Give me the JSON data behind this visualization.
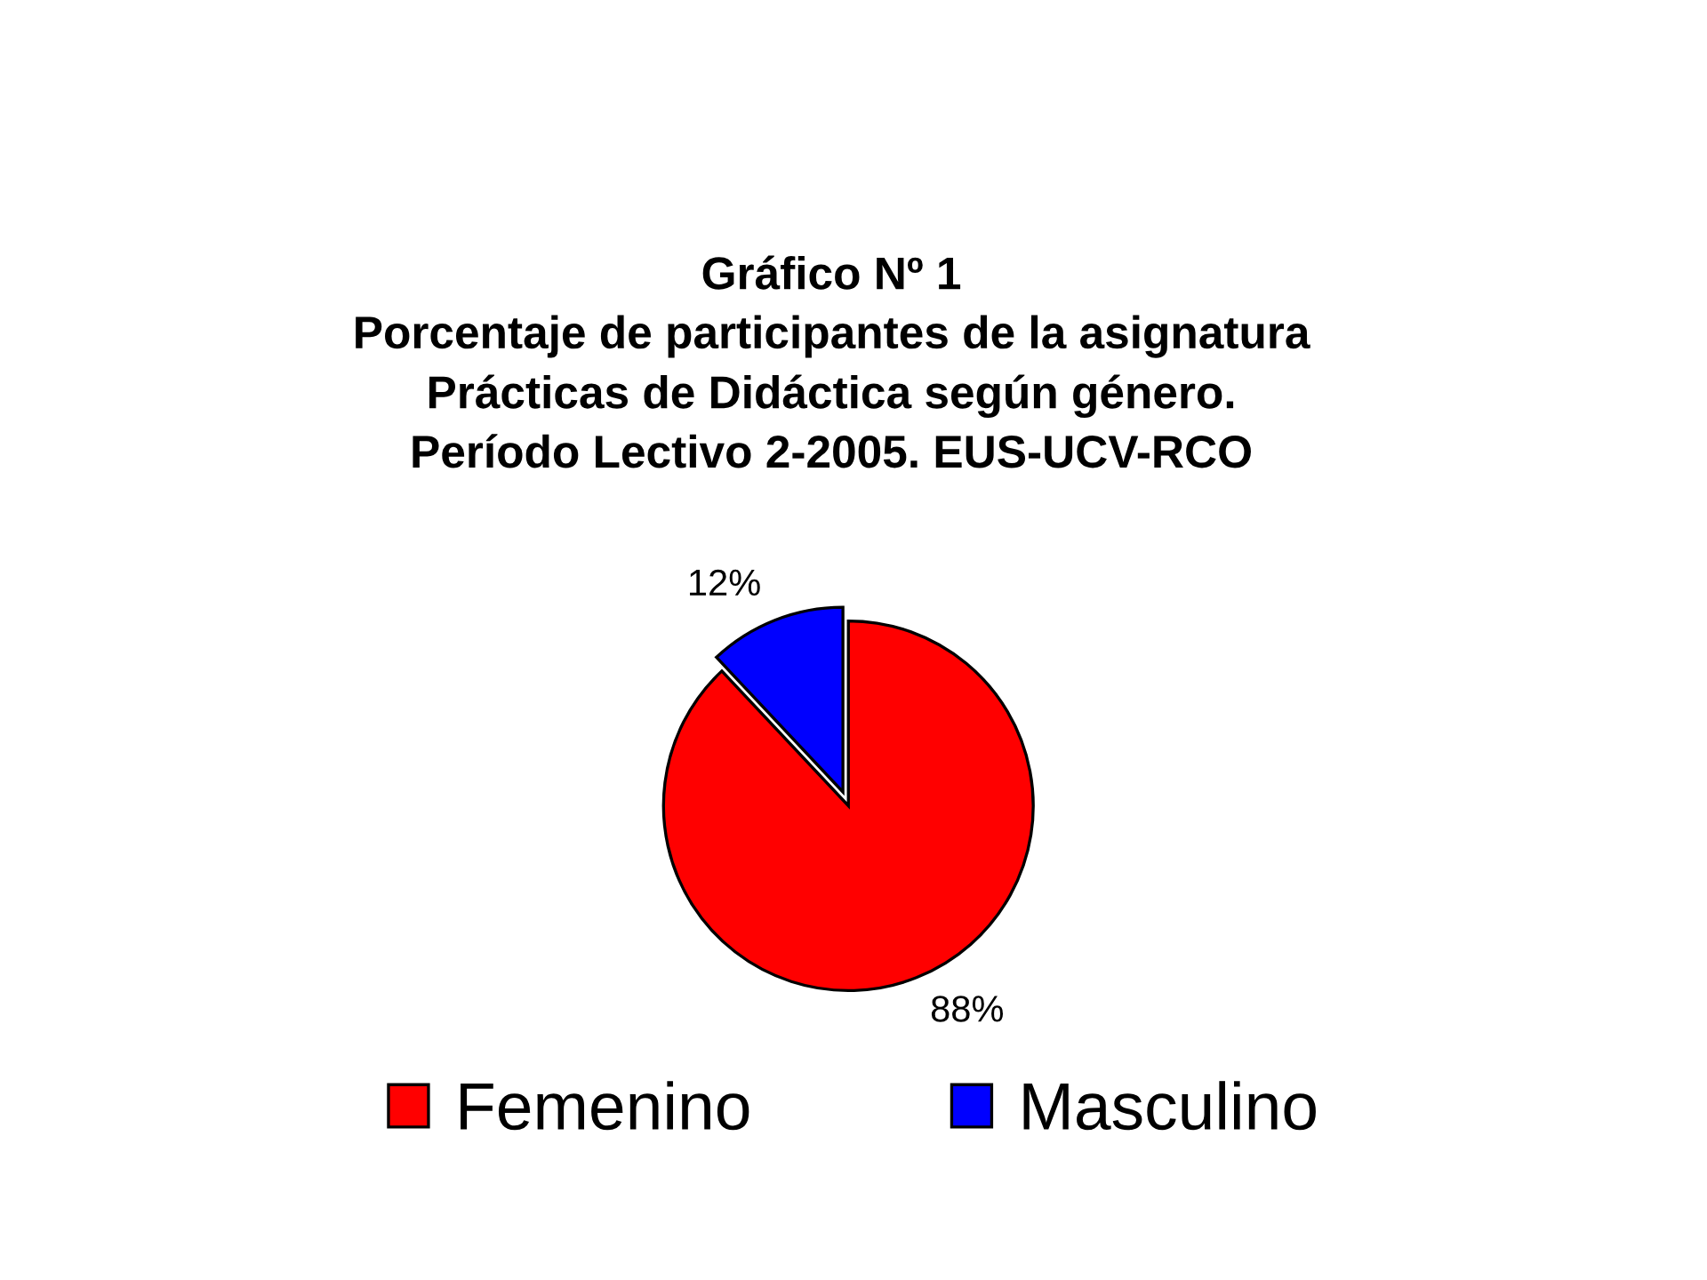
{
  "chart_data": {
    "type": "pie",
    "title": "Gráfico Nº 1\nPorcentaje de participantes de la asignatura\nPrácticas de Didáctica según género.\nPeríodo Lectivo 2-2005. EUS-UCV-RCO",
    "categories": [
      "Femenino",
      "Masculino"
    ],
    "values": [
      88,
      12
    ],
    "colors": [
      "#ff0000",
      "#0000ff"
    ],
    "value_labels": [
      "88%",
      "12%"
    ],
    "legend": "bottom"
  }
}
